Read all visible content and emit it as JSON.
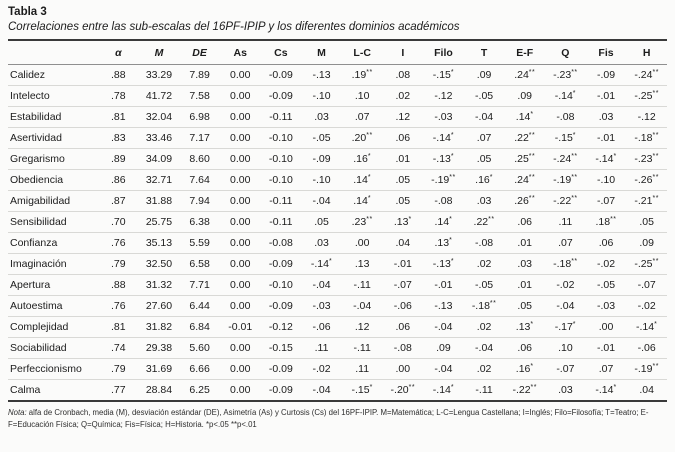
{
  "title": "Tabla 3",
  "subtitle": "Correlaciones entre las sub-escalas del 16PF-IPIP y los diferentes dominios académicos",
  "table": {
    "headers": [
      "",
      "α",
      "M",
      "DE",
      "As",
      "Cs",
      "M",
      "L-C",
      "I",
      "Filo",
      "T",
      "E-F",
      "Q",
      "Fis",
      "H"
    ],
    "rows": [
      {
        "label": "Calidez",
        "values": [
          ".88",
          "33.29",
          "7.89",
          "0.00",
          "-0.09",
          "-.13",
          ".19**",
          ".08",
          "-.15*",
          ".09",
          ".24**",
          "-.23**",
          "-.09",
          "-.24**"
        ]
      },
      {
        "label": "Intelecto",
        "values": [
          ".78",
          "41.72",
          "7.58",
          "0.00",
          "-0.09",
          "-.10",
          ".10",
          ".02",
          "-.12",
          "-.05",
          ".09",
          "-.14*",
          "-.01",
          "-.25**"
        ]
      },
      {
        "label": "Estabilidad",
        "values": [
          ".81",
          "32.04",
          "6.98",
          "0.00",
          "-0.11",
          ".03",
          ".07",
          ".12",
          "-.03",
          "-.04",
          ".14*",
          "-.08",
          ".03",
          "-.12"
        ]
      },
      {
        "label": "Asertividad",
        "values": [
          ".83",
          "33.46",
          "7.17",
          "0.00",
          "-0.10",
          "-.05",
          ".20**",
          ".06",
          "-.14*",
          ".07",
          ".22**",
          "-.15*",
          "-.01",
          "-.18**"
        ]
      },
      {
        "label": "Gregarismo",
        "values": [
          ".89",
          "34.09",
          "8.60",
          "0.00",
          "-0.10",
          "-.09",
          ".16*",
          ".01",
          "-.13*",
          ".05",
          ".25**",
          "-.24**",
          "-.14*",
          "-.23**"
        ]
      },
      {
        "label": "Obediencia",
        "values": [
          ".86",
          "32.71",
          "7.64",
          "0.00",
          "-0.10",
          "-.10",
          ".14*",
          ".05",
          "-.19**",
          ".16*",
          ".24**",
          "-.19**",
          "-.10",
          "-.26**"
        ]
      },
      {
        "label": "Amigabilidad",
        "values": [
          ".87",
          "31.88",
          "7.94",
          "0.00",
          "-0.11",
          "-.04",
          ".14*",
          ".05",
          "-.08",
          ".03",
          ".26**",
          "-.22**",
          "-.07",
          "-.21**"
        ]
      },
      {
        "label": "Sensibilidad",
        "values": [
          ".70",
          "25.75",
          "6.38",
          "0.00",
          "-0.11",
          ".05",
          ".23**",
          ".13*",
          ".14*",
          ".22**",
          ".06",
          ".11",
          ".18**",
          ".05"
        ]
      },
      {
        "label": "Confianza",
        "values": [
          ".76",
          "35.13",
          "5.59",
          "0.00",
          "-0.08",
          ".03",
          ".00",
          ".04",
          ".13*",
          "-.08",
          ".01",
          ".07",
          ".06",
          ".09"
        ]
      },
      {
        "label": "Imaginación",
        "values": [
          ".79",
          "32.50",
          "6.58",
          "0.00",
          "-0.09",
          "-.14*",
          ".13",
          "-.01",
          "-.13*",
          ".02",
          ".03",
          "-.18**",
          "-.02",
          "-.25**"
        ]
      },
      {
        "label": "Apertura",
        "values": [
          ".88",
          "31.32",
          "7.71",
          "0.00",
          "-0.10",
          "-.04",
          "-.11",
          "-.07",
          "-.01",
          "-.05",
          ".01",
          "-.02",
          "-.05",
          "-.07"
        ]
      },
      {
        "label": "Autoestima",
        "values": [
          ".76",
          "27.60",
          "6.44",
          "0.00",
          "-0.09",
          "-.03",
          "-.04",
          "-.06",
          "-.13",
          "-.18**",
          ".05",
          "-.04",
          "-.03",
          "-.02"
        ]
      },
      {
        "label": "Complejidad",
        "values": [
          ".81",
          "31.82",
          "6.84",
          "-0.01",
          "-0.12",
          "-.06",
          ".12",
          ".06",
          "-.04",
          ".02",
          ".13*",
          "-.17*",
          ".00",
          "-.14*"
        ]
      },
      {
        "label": "Sociabilidad",
        "values": [
          ".74",
          "29.38",
          "5.60",
          "0.00",
          "-0.15",
          ".11",
          "-.11",
          "-.08",
          ".09",
          "-.04",
          ".06",
          ".10",
          "-.01",
          "-.06"
        ]
      },
      {
        "label": "Perfeccionismo",
        "values": [
          ".79",
          "31.69",
          "6.66",
          "0.00",
          "-0.09",
          "-.02",
          ".11",
          ".00",
          "-.04",
          ".02",
          ".16*",
          "-.07",
          ".07",
          "-.19**"
        ]
      },
      {
        "label": "Calma",
        "values": [
          ".77",
          "28.84",
          "6.25",
          "0.00",
          "-0.09",
          "-.04",
          "-.15*",
          "-.20**",
          "-.14*",
          "-.11",
          "-.22**",
          ".03",
          "-.14*",
          ".04"
        ]
      }
    ]
  },
  "note": {
    "prefix": "Nota:",
    "text": " alfa de Cronbach, media (M), desviación estándar (DE), Asimetría (As) y Curtosis (Cs) del 16PF-IPIP. M=Matemática; L-C=Lengua Castellana; I=Inglés; Filo=Filosofía; T=Teatro; E-F=Educación Física; Q=Química; Fis=Física; H=Historia. *p<.05 **p<.01"
  },
  "colors": {
    "rule_dark": "#3a3a3a",
    "rule_light": "#d9d9d6",
    "background": "#fbfbfa",
    "text": "#1c1c1c"
  }
}
